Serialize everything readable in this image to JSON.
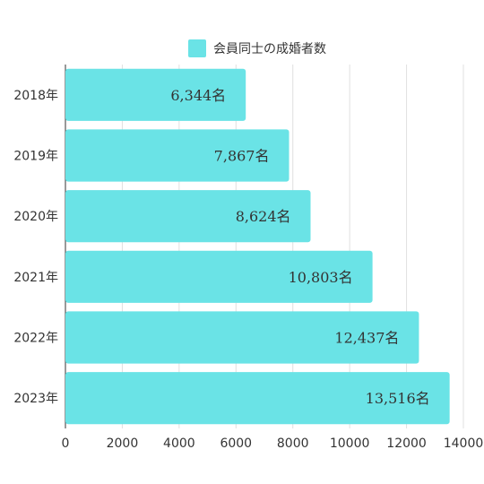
{
  "legend": {
    "label": "会員同士の成婚者数",
    "color": "#6ae3e6"
  },
  "chart_data": {
    "type": "bar",
    "orientation": "horizontal",
    "categories": [
      "2018年",
      "2019年",
      "2020年",
      "2021年",
      "2022年",
      "2023年"
    ],
    "series": [
      {
        "name": "会員同士の成婚者数",
        "values": [
          6344,
          7867,
          8624,
          10803,
          12437,
          13516
        ]
      }
    ],
    "data_labels": [
      "6,344名",
      "7,867名",
      "8,624名",
      "10,803名",
      "12,437名",
      "13,516名"
    ],
    "xlim": [
      0,
      14000
    ],
    "xticks": [
      "0",
      "2000",
      "4000",
      "6000",
      "8000",
      "10000",
      "12000",
      "14000"
    ],
    "bar_color": "#6ae3e6",
    "grid": true,
    "legend_position": "top"
  }
}
